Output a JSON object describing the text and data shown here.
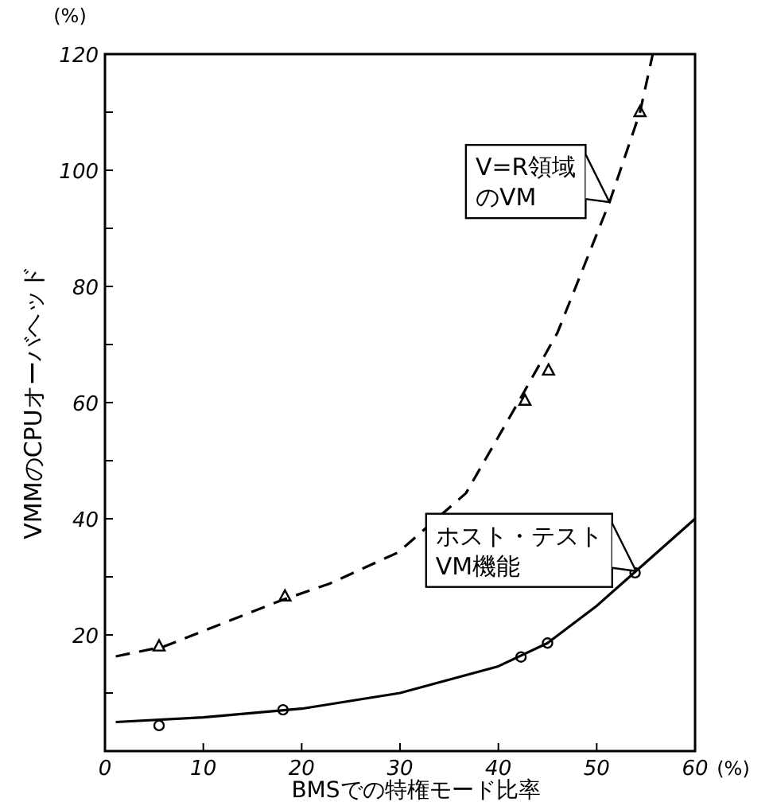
{
  "chart_data": {
    "type": "scatter",
    "xlabel": "BMSでの特権モード比率",
    "ylabel": "VMMのCPUオーバヘッド",
    "xlim": [
      0,
      60
    ],
    "ylim": [
      0,
      120
    ],
    "xticks": [
      0,
      10,
      20,
      30,
      40,
      50,
      60
    ],
    "yticks": [
      {
        "value": 0,
        "label": null
      },
      {
        "value": 10,
        "label": null
      },
      20,
      {
        "value": 30,
        "label": null
      },
      40,
      {
        "value": 50,
        "label": null
      },
      60,
      {
        "value": 70,
        "label": null
      },
      80,
      {
        "value": 90,
        "label": null
      },
      100,
      {
        "value": 110,
        "label": null
      },
      120
    ],
    "series": [
      {
        "marker": "triangle",
        "color": "#000000",
        "x": [
          5.5,
          18.3,
          42.7,
          45.1,
          54.4
        ],
        "values": [
          18,
          26.6,
          60.3,
          65.5,
          110
        ]
      },
      {
        "marker": "circle",
        "color": "#000000",
        "x": [
          5.5,
          18.1,
          42.3,
          45,
          53.9
        ],
        "values": [
          4.4,
          7.1,
          16.2,
          18.6,
          30.7
        ]
      },
      {
        "type": "line",
        "line_style": "dashed",
        "color": "#000000",
        "x": [
          1.1,
          6,
          18,
          22.8,
          29.8,
          36.7,
          42,
          46,
          51.3,
          54.4,
          55.7
        ],
        "values": [
          16.3,
          18,
          26,
          28.8,
          34.2,
          44.4,
          60,
          72,
          94.5,
          110,
          120
        ]
      },
      {
        "type": "line",
        "line_style": "solid",
        "color": "#000000",
        "x": [
          1.1,
          10,
          20,
          30,
          40,
          45,
          50,
          54,
          60
        ],
        "values": [
          5,
          5.8,
          7.3,
          10,
          14.6,
          18.6,
          25,
          31,
          40
        ]
      }
    ],
    "annotations": [
      "(%)",
      "(%)",
      {
        "text": "V=R領域のVM",
        "x": 51.3,
        "y": 94.5
      },
      {
        "text": "ホスト・テストVM機能",
        "x": 54,
        "y": 31
      }
    ]
  }
}
